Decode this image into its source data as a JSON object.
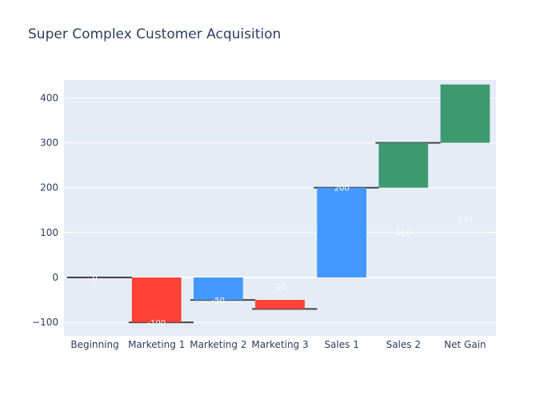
{
  "chart_data": {
    "type": "waterfall",
    "title": "Super Complex Customer Acquisition",
    "categories": [
      "Beginning",
      "Marketing 1",
      "Marketing 2",
      "Marketing 3",
      "Sales 1",
      "Sales 2",
      "Net Gain"
    ],
    "values": [
      0,
      -100,
      -50,
      -20,
      200,
      100,
      130
    ],
    "base": [
      0,
      0,
      0,
      -50,
      0,
      200,
      300
    ],
    "labels": [
      "0",
      "-100",
      "-50",
      "-20",
      "200",
      "100",
      "130"
    ],
    "label_values": [
      0,
      -100,
      -50,
      -20,
      200,
      100,
      130
    ],
    "colors": [
      "#ff4136",
      "#ff4136",
      "#4499ff",
      "#ff4136",
      "#4499ff",
      "#3d9970",
      "#3d9970"
    ],
    "connectors": [
      0,
      -100,
      -50,
      -70,
      200,
      300
    ],
    "ylim": [
      -130,
      440
    ],
    "yticks": [
      -100,
      0,
      100,
      200,
      300,
      400
    ],
    "ytick_labels": [
      "−100",
      "0",
      "100",
      "200",
      "300",
      "400"
    ],
    "xlabel": "",
    "ylabel": "",
    "grid": true,
    "legend": "none",
    "plot_bgcolor": "#e5ecf6",
    "grid_color": "#ffffff",
    "tick_color": "#2a3f5f",
    "connector_color": "#444444"
  }
}
